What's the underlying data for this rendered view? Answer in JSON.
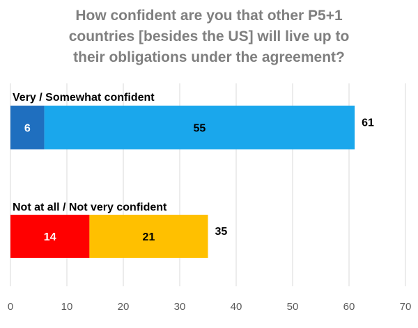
{
  "chart_data": {
    "type": "bar",
    "orientation": "horizontal",
    "stacked": true,
    "title_lines": [
      "How confident are you that other P5+1",
      "countries [besides the US] will live up to",
      "their obligations under the agreement?"
    ],
    "categories": [
      {
        "label": "Very / Somewhat  confident",
        "segments": [
          {
            "value": 6,
            "label": "6",
            "color": "#1f6fbf",
            "text_color": "#ffffff"
          },
          {
            "value": 55,
            "label": "55",
            "color": "#1aa7ec",
            "text_color": "#000000"
          }
        ],
        "total": 61,
        "total_label": "61"
      },
      {
        "label": "Not at all / Not very confident",
        "segments": [
          {
            "value": 14,
            "label": "14",
            "color": "#ff0000",
            "text_color": "#ffffff"
          },
          {
            "value": 21,
            "label": "21",
            "color": "#ffc000",
            "text_color": "#000000"
          }
        ],
        "total": 35,
        "total_label": "35"
      }
    ],
    "xlim": [
      0,
      70
    ],
    "xticks": [
      "0",
      "10",
      "20",
      "30",
      "40",
      "50",
      "60",
      "70"
    ],
    "grid": true,
    "grid_color": "#d9d9d9"
  }
}
